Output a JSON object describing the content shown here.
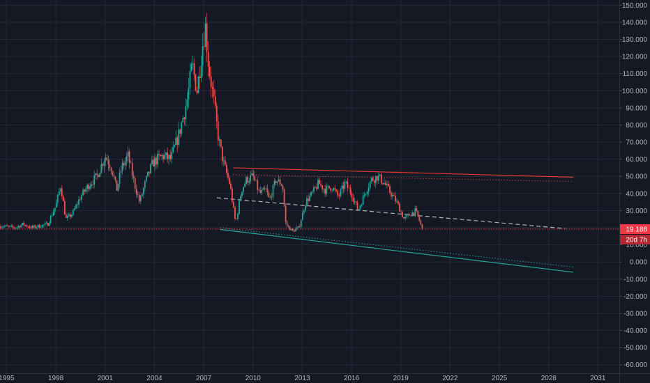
{
  "colors": {
    "background": "#151924",
    "grid": "#252a36",
    "axis_text": "#b2b5be",
    "up": "#26a69a",
    "down": "#ef5350",
    "resistance": "#e53935",
    "support": "#26a69a",
    "midline": "#d1d4dc",
    "price_line": "#f23645"
  },
  "chart_data": {
    "type": "candlestick",
    "y_axis": {
      "min": -65,
      "max": 153,
      "step": 10,
      "side": "right",
      "ticks": [
        "150.000",
        "140.000",
        "130.000",
        "120.000",
        "110.000",
        "100.000",
        "90.000",
        "80.000",
        "70.000",
        "60.000",
        "50.000",
        "40.000",
        "30.000",
        "20.000",
        "10.000",
        "0.000",
        "-10.000",
        "-20.000",
        "-30.000",
        "-40.000",
        "-50.000",
        "-60.000"
      ]
    },
    "x_axis": {
      "min": 1994.6,
      "max": 2032.3,
      "ticks": [
        "1995",
        "1998",
        "2001",
        "2004",
        "2007",
        "2010",
        "2013",
        "2016",
        "2019",
        "2022",
        "2025",
        "2028",
        "2031"
      ],
      "tick_years": [
        1995,
        1998,
        2001,
        2004,
        2007,
        2010,
        2013,
        2016,
        2019,
        2022,
        2025,
        2028,
        2031
      ]
    },
    "grid": true,
    "price_path": [
      [
        1994.6,
        21
      ],
      [
        1995.5,
        20
      ],
      [
        1996.0,
        22
      ],
      [
        1996.5,
        20
      ],
      [
        1997.0,
        21
      ],
      [
        1997.5,
        22
      ],
      [
        1998.0,
        33
      ],
      [
        1998.3,
        45
      ],
      [
        1998.6,
        25
      ],
      [
        1999.0,
        28
      ],
      [
        1999.5,
        38
      ],
      [
        2000.0,
        45
      ],
      [
        2000.5,
        50
      ],
      [
        2001.0,
        62
      ],
      [
        2001.4,
        55
      ],
      [
        2001.7,
        42
      ],
      [
        2002.0,
        55
      ],
      [
        2002.4,
        62
      ],
      [
        2002.8,
        45
      ],
      [
        2003.1,
        35
      ],
      [
        2003.5,
        48
      ],
      [
        2003.9,
        58
      ],
      [
        2004.5,
        62
      ],
      [
        2005.0,
        60
      ],
      [
        2005.5,
        75
      ],
      [
        2006.0,
        95
      ],
      [
        2006.3,
        115
      ],
      [
        2006.6,
        100
      ],
      [
        2006.9,
        125
      ],
      [
        2007.1,
        138
      ],
      [
        2007.3,
        115
      ],
      [
        2007.6,
        95
      ],
      [
        2007.9,
        72
      ],
      [
        2008.2,
        58
      ],
      [
        2008.6,
        45
      ],
      [
        2008.9,
        25
      ],
      [
        2009.0,
        25
      ],
      [
        2009.3,
        42
      ],
      [
        2009.6,
        48
      ],
      [
        2010.0,
        50
      ],
      [
        2010.4,
        40
      ],
      [
        2010.8,
        42
      ],
      [
        2011.0,
        36
      ],
      [
        2011.4,
        48
      ],
      [
        2011.8,
        45
      ],
      [
        2012.0,
        22
      ],
      [
        2012.4,
        18
      ],
      [
        2012.8,
        20
      ],
      [
        2013.2,
        35
      ],
      [
        2013.6,
        40
      ],
      [
        2014.0,
        46
      ],
      [
        2014.4,
        42
      ],
      [
        2014.8,
        44
      ],
      [
        2015.2,
        38
      ],
      [
        2015.6,
        46
      ],
      [
        2016.0,
        40
      ],
      [
        2016.4,
        30
      ],
      [
        2016.8,
        40
      ],
      [
        2017.2,
        48
      ],
      [
        2017.6,
        50
      ],
      [
        2018.0,
        46
      ],
      [
        2018.4,
        40
      ],
      [
        2018.8,
        34
      ],
      [
        2019.2,
        25
      ],
      [
        2019.6,
        28
      ],
      [
        2019.9,
        30
      ],
      [
        2020.1,
        25
      ],
      [
        2020.3,
        19.2
      ]
    ],
    "last_price": "19.188",
    "countdown": "20d 7h",
    "trendlines": [
      {
        "role": "resistance",
        "style": "solid",
        "x": [
          2008.8,
          2029.5
        ],
        "y": [
          55,
          49.5
        ]
      },
      {
        "role": "resistance",
        "style": "dotted",
        "x": [
          2008.8,
          2029.5
        ],
        "y": [
          51,
          47
        ]
      },
      {
        "role": "midline",
        "style": "dashed",
        "x": [
          2007.8,
          2029.0
        ],
        "y": [
          37.5,
          19.5
        ]
      },
      {
        "role": "support",
        "style": "solid",
        "x": [
          2008.0,
          2029.5
        ],
        "y": [
          19,
          -6
        ]
      },
      {
        "role": "support",
        "style": "dotted",
        "x": [
          2008.0,
          2029.5
        ],
        "y": [
          20,
          -3
        ]
      }
    ]
  }
}
